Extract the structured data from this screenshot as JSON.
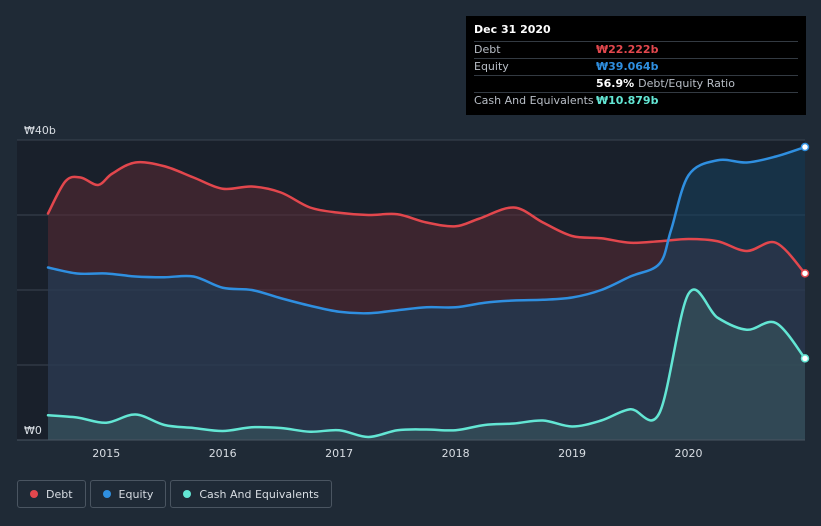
{
  "chart_data": {
    "type": "area",
    "title": "",
    "currency_symbol": "₩",
    "x_range": [
      2014.5,
      2021.0
    ],
    "ylim": [
      0,
      40
    ],
    "y_ticks": [
      {
        "value": 0,
        "label": "₩0"
      },
      {
        "value": 40,
        "label": "₩40b"
      }
    ],
    "x_ticks": [
      {
        "value": 2015,
        "label": "2015"
      },
      {
        "value": 2016,
        "label": "2016"
      },
      {
        "value": 2017,
        "label": "2017"
      },
      {
        "value": 2018,
        "label": "2018"
      },
      {
        "value": 2019,
        "label": "2019"
      },
      {
        "value": 2020,
        "label": "2020"
      }
    ],
    "series": [
      {
        "name": "Debt",
        "key": "debt",
        "color": "#e2474d",
        "fill": "#5a2a33",
        "points": [
          [
            2014.5,
            30.2
          ],
          [
            2014.65,
            34.5
          ],
          [
            2014.78,
            35.0
          ],
          [
            2014.93,
            34.0
          ],
          [
            2015.05,
            35.5
          ],
          [
            2015.25,
            37.0
          ],
          [
            2015.5,
            36.5
          ],
          [
            2015.75,
            35.0
          ],
          [
            2016.0,
            33.5
          ],
          [
            2016.25,
            33.8
          ],
          [
            2016.5,
            33.0
          ],
          [
            2016.75,
            31.0
          ],
          [
            2017.0,
            30.3
          ],
          [
            2017.25,
            30.0
          ],
          [
            2017.5,
            30.1
          ],
          [
            2017.75,
            29.0
          ],
          [
            2018.0,
            28.5
          ],
          [
            2018.2,
            29.5
          ],
          [
            2018.5,
            31.0
          ],
          [
            2018.75,
            29.0
          ],
          [
            2019.0,
            27.2
          ],
          [
            2019.25,
            26.9
          ],
          [
            2019.5,
            26.3
          ],
          [
            2019.75,
            26.5
          ],
          [
            2020.0,
            26.8
          ],
          [
            2020.25,
            26.5
          ],
          [
            2020.5,
            25.2
          ],
          [
            2020.75,
            26.3
          ],
          [
            2021.0,
            22.222
          ]
        ]
      },
      {
        "name": "Equity",
        "key": "equity",
        "color": "#2f8fe0",
        "fill": "#15425e",
        "points": [
          [
            2014.5,
            23.0
          ],
          [
            2014.75,
            22.2
          ],
          [
            2015.0,
            22.2
          ],
          [
            2015.25,
            21.8
          ],
          [
            2015.5,
            21.7
          ],
          [
            2015.75,
            21.8
          ],
          [
            2016.0,
            20.3
          ],
          [
            2016.25,
            20.0
          ],
          [
            2016.5,
            18.9
          ],
          [
            2016.75,
            17.9
          ],
          [
            2017.0,
            17.1
          ],
          [
            2017.25,
            16.9
          ],
          [
            2017.5,
            17.3
          ],
          [
            2017.75,
            17.7
          ],
          [
            2018.0,
            17.7
          ],
          [
            2018.25,
            18.3
          ],
          [
            2018.5,
            18.6
          ],
          [
            2018.75,
            18.7
          ],
          [
            2019.0,
            19.0
          ],
          [
            2019.25,
            20.0
          ],
          [
            2019.5,
            21.8
          ],
          [
            2019.75,
            23.5
          ],
          [
            2019.85,
            28.0
          ],
          [
            2020.0,
            35.3
          ],
          [
            2020.25,
            37.3
          ],
          [
            2020.5,
            37.0
          ],
          [
            2020.75,
            37.8
          ],
          [
            2021.0,
            39.064
          ]
        ]
      },
      {
        "name": "Cash And Equivalents",
        "key": "cash",
        "color": "#63e6d4",
        "fill": "#3a5a5e",
        "points": [
          [
            2014.5,
            3.3
          ],
          [
            2014.75,
            3.0
          ],
          [
            2015.0,
            2.3
          ],
          [
            2015.25,
            3.4
          ],
          [
            2015.5,
            2.0
          ],
          [
            2015.75,
            1.6
          ],
          [
            2016.0,
            1.2
          ],
          [
            2016.25,
            1.7
          ],
          [
            2016.5,
            1.6
          ],
          [
            2016.75,
            1.1
          ],
          [
            2017.0,
            1.3
          ],
          [
            2017.25,
            0.4
          ],
          [
            2017.5,
            1.3
          ],
          [
            2017.75,
            1.4
          ],
          [
            2018.0,
            1.3
          ],
          [
            2018.25,
            2.0
          ],
          [
            2018.5,
            2.2
          ],
          [
            2018.75,
            2.6
          ],
          [
            2019.0,
            1.8
          ],
          [
            2019.25,
            2.6
          ],
          [
            2019.5,
            4.1
          ],
          [
            2019.75,
            3.6
          ],
          [
            2020.0,
            19.5
          ],
          [
            2020.25,
            16.3
          ],
          [
            2020.5,
            14.7
          ],
          [
            2020.75,
            15.6
          ],
          [
            2021.0,
            10.879
          ]
        ]
      }
    ]
  },
  "tooltip": {
    "date": "Dec 31 2020",
    "rows": [
      {
        "label": "Debt",
        "value": "₩22.222b",
        "color": "#e2474d"
      },
      {
        "label": "Equity",
        "value": "₩39.064b",
        "color": "#2f8fe0"
      },
      {
        "label": "",
        "value": "56.9%",
        "color": "#ffffff",
        "extra": "Debt/Equity Ratio"
      },
      {
        "label": "Cash And Equivalents",
        "value": "₩10.879b",
        "color": "#63e6d4"
      }
    ]
  },
  "legend": [
    {
      "label": "Debt",
      "color": "#e2474d"
    },
    {
      "label": "Equity",
      "color": "#2f8fe0"
    },
    {
      "label": "Cash And Equivalents",
      "color": "#63e6d4"
    }
  ]
}
